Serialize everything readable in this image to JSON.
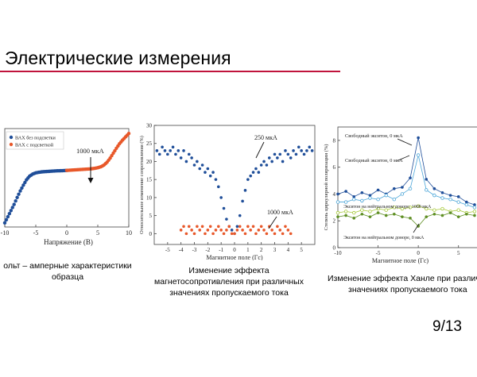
{
  "slide": {
    "title": "Электрические измерения",
    "page_number": "9/13",
    "accent_color": "#c0143c"
  },
  "figures": {
    "iv": {
      "caption_line1": "ольт – амперные характеристики",
      "caption_line2": "образца"
    },
    "mr": {
      "caption_line1": "Изменение эффекта",
      "caption_line2": "магнетосопротивления при различных",
      "caption_line3": "значениях пропускаемого тока"
    },
    "hanle": {
      "caption_line1": "Изменение эффекта Ханле при различн",
      "caption_line2": "значениях пропускаемого тока"
    }
  },
  "chart_data": [
    {
      "type": "scatter",
      "xlabel": "Напряжение (В)",
      "xlim": [
        -10,
        10
      ],
      "xticks": [
        "-10",
        "-5",
        "0",
        "5",
        "10"
      ],
      "legend": [
        "ВАХ без подсветки",
        "ВАХ с подсветкой"
      ],
      "legend_placement": "top-left",
      "annotation": "1000 мкА",
      "series": [
        {
          "name": "ВАХ без подсветки",
          "color": "#1f4e99",
          "x": [
            -10,
            -9.5,
            -9,
            -8.5,
            -8,
            -7.5,
            -7,
            -6.5,
            -6,
            -5.5,
            -5,
            -4.5,
            -4,
            -3.5,
            -3,
            -2.5,
            -2,
            -1.5,
            -1,
            -0.5,
            0
          ],
          "y": [
            -1.0,
            -0.85,
            -0.7,
            -0.55,
            -0.38,
            -0.22,
            -0.08,
            0.05,
            0.14,
            0.19,
            0.22,
            0.235,
            0.245,
            0.25,
            0.255,
            0.26,
            0.265,
            0.27,
            0.272,
            0.275,
            0.28
          ]
        },
        {
          "name": "ВАХ с подсветкой",
          "color": "#e8582a",
          "x": [
            0,
            0.5,
            1,
            1.5,
            2,
            2.5,
            3,
            3.5,
            4,
            4.5,
            5,
            5.5,
            6,
            6.5,
            7,
            7.5,
            8,
            8.5,
            9,
            9.5,
            10
          ],
          "y": [
            0.28,
            0.285,
            0.29,
            0.295,
            0.3,
            0.305,
            0.31,
            0.315,
            0.32,
            0.33,
            0.345,
            0.37,
            0.41,
            0.48,
            0.58,
            0.7,
            0.82,
            0.93,
            1.02,
            1.1,
            1.18
          ]
        }
      ]
    },
    {
      "type": "scatter",
      "xlabel": "Магнитное поле (Гс)",
      "ylabel": "Относительное изменение сопротивления (%)",
      "xlim": [
        -6,
        6
      ],
      "ylim": [
        -0.03,
        0.3
      ],
      "xticks": [
        "-5",
        "-4",
        "-3",
        "-2",
        "-1",
        "0",
        "1",
        "2",
        "3",
        "4",
        "5"
      ],
      "yticks": [
        "0",
        "5",
        "10",
        "15",
        "20",
        "25",
        "30"
      ],
      "annotations": [
        "250 мкА",
        "1000 мкА"
      ],
      "series": [
        {
          "name": "250 мкА",
          "color": "#1f4e99",
          "x": [
            -5.8,
            -5.6,
            -5.4,
            -5.2,
            -5.0,
            -4.8,
            -4.6,
            -4.4,
            -4.2,
            -4.0,
            -3.8,
            -3.6,
            -3.4,
            -3.2,
            -3.0,
            -2.8,
            -2.6,
            -2.4,
            -2.2,
            -2.0,
            -1.8,
            -1.6,
            -1.4,
            -1.2,
            -1.0,
            -0.8,
            -0.6,
            -0.4,
            -0.2,
            0,
            0.2,
            0.4,
            0.6,
            0.8,
            1.0,
            1.2,
            1.4,
            1.6,
            1.8,
            2.0,
            2.2,
            2.4,
            2.6,
            2.8,
            3.0,
            3.2,
            3.4,
            3.6,
            3.8,
            4.0,
            4.2,
            4.4,
            4.6,
            4.8,
            5.0,
            5.2,
            5.4,
            5.6,
            5.8
          ],
          "y": [
            0.23,
            0.22,
            0.24,
            0.23,
            0.22,
            0.23,
            0.24,
            0.22,
            0.23,
            0.21,
            0.23,
            0.2,
            0.22,
            0.21,
            0.19,
            0.2,
            0.18,
            0.19,
            0.17,
            0.18,
            0.16,
            0.17,
            0.15,
            0.13,
            0.1,
            0.07,
            0.04,
            0.02,
            0.01,
            0.0,
            0.02,
            0.05,
            0.09,
            0.12,
            0.15,
            0.16,
            0.17,
            0.18,
            0.17,
            0.19,
            0.2,
            0.19,
            0.21,
            0.2,
            0.22,
            0.21,
            0.22,
            0.2,
            0.23,
            0.22,
            0.21,
            0.23,
            0.22,
            0.24,
            0.23,
            0.22,
            0.23,
            0.24,
            0.23
          ]
        },
        {
          "name": "1000 мкА",
          "color": "#e8582a",
          "x": [
            -4.0,
            -3.8,
            -3.6,
            -3.4,
            -3.2,
            -3.0,
            -2.8,
            -2.6,
            -2.4,
            -2.2,
            -2.0,
            -1.8,
            -1.6,
            -1.4,
            -1.2,
            -1.0,
            -0.8,
            -0.6,
            -0.4,
            -0.2,
            0,
            0.2,
            0.4,
            0.6,
            0.8,
            1.0,
            1.2,
            1.4,
            1.6,
            1.8,
            2.0,
            2.2,
            2.4,
            2.6,
            2.8,
            3.0,
            3.2,
            3.4,
            3.6,
            3.8,
            4.0,
            4.2
          ],
          "y": [
            0.01,
            0.02,
            0.0,
            0.02,
            0.01,
            0.0,
            0.02,
            0.01,
            0.02,
            0.0,
            0.01,
            0.02,
            0.0,
            0.01,
            0.02,
            0.01,
            0.0,
            0.01,
            0.02,
            0.0,
            0.0,
            0.01,
            0.02,
            0.01,
            0.0,
            0.02,
            0.01,
            0.02,
            0.0,
            0.01,
            0.02,
            0.01,
            0.0,
            0.02,
            0.01,
            0.0,
            0.02,
            0.01,
            0.0,
            0.02,
            0.01,
            0.0
          ]
        }
      ]
    },
    {
      "type": "line",
      "xlabel": "Магнитное поле (Гс)",
      "ylabel": "Степень циркулярной поляризации (%)",
      "xlim": [
        -10,
        7.5
      ],
      "ylim": [
        0,
        9
      ],
      "xticks": [
        "-10",
        "-5",
        "0",
        "5"
      ],
      "yticks": [
        "0",
        "2",
        "4",
        "6",
        "8"
      ],
      "series": [
        {
          "name": "Свободный экситон, 0 мкА",
          "color": "#1f4e99",
          "marker": "filled",
          "x": [
            -10,
            -9,
            -8,
            -7,
            -6,
            -5,
            -4,
            -3,
            -2,
            -1,
            0,
            1,
            2,
            3,
            4,
            5,
            6,
            7
          ],
          "y": [
            4.0,
            4.2,
            3.8,
            4.1,
            3.9,
            4.3,
            4.0,
            4.4,
            4.5,
            5.2,
            8.2,
            5.1,
            4.4,
            4.1,
            3.9,
            3.8,
            3.4,
            3.2
          ]
        },
        {
          "name": "Свободный экситон, 0 мкА",
          "color": "#4aa5d8",
          "marker": "open",
          "x": [
            -10,
            -9,
            -8,
            -7,
            -6,
            -5,
            -4,
            -3,
            -2,
            -1,
            0,
            1,
            2,
            3,
            4,
            5,
            6,
            7
          ],
          "y": [
            3.4,
            3.4,
            3.6,
            3.5,
            3.7,
            3.6,
            3.9,
            3.6,
            4.0,
            4.4,
            6.9,
            4.3,
            3.9,
            3.7,
            3.6,
            3.4,
            3.2,
            3.0
          ]
        },
        {
          "name": "Экситон на нейтральном доноре, 1000 мкА",
          "color": "#a7c93a",
          "marker": "open",
          "x": [
            -10,
            -9,
            -8,
            -7,
            -6,
            -5,
            -4,
            -3,
            -2,
            -1,
            0,
            1,
            2,
            3,
            4,
            5,
            6,
            7
          ],
          "y": [
            2.6,
            2.7,
            2.6,
            2.8,
            2.7,
            2.9,
            2.8,
            3.0,
            2.9,
            3.0,
            3.1,
            2.9,
            2.8,
            2.9,
            2.7,
            2.8,
            2.6,
            2.7
          ]
        },
        {
          "name": "Экситон на нейтральном доноре, 0 мкА",
          "color": "#5f8f24",
          "marker": "filled",
          "x": [
            -10,
            -9,
            -8,
            -7,
            -6,
            -5,
            -4,
            -3,
            -2,
            -1,
            0,
            1,
            2,
            3,
            4,
            5,
            6,
            7
          ],
          "y": [
            2.3,
            2.4,
            2.2,
            2.5,
            2.3,
            2.6,
            2.4,
            2.5,
            2.3,
            2.2,
            1.6,
            2.3,
            2.5,
            2.4,
            2.6,
            2.3,
            2.5,
            2.4
          ]
        }
      ]
    }
  ]
}
